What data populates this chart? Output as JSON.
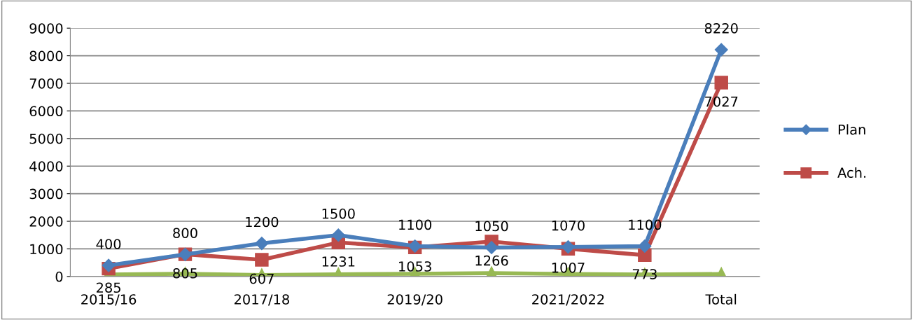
{
  "chart_data": {
    "type": "line",
    "categories": [
      "2015/16",
      null,
      "2017/18",
      null,
      "2019/20",
      null,
      "2021/2022",
      null,
      "Total"
    ],
    "series": [
      {
        "name": "Plan",
        "color": "#4a7ebb",
        "marker": "diamond",
        "values": [
          400,
          800,
          1200,
          1500,
          1100,
          1050,
          1070,
          1100,
          8220
        ],
        "value_labels": [
          "400",
          "800",
          "1200",
          "1500",
          "1100",
          "1050",
          "1070",
          "1100",
          "8220"
        ]
      },
      {
        "name": "Ach.",
        "color": "#be4b48",
        "marker": "square",
        "values": [
          285,
          805,
          607,
          1231,
          1053,
          1266,
          1007,
          773,
          7027
        ],
        "value_labels": [
          "285",
          "805",
          "607",
          "1231",
          "1053",
          "1266",
          "1007",
          "773",
          "7027"
        ]
      },
      {
        "color": "#98b954",
        "marker": "triangle",
        "values": [
          70,
          100,
          50,
          80,
          100,
          120,
          90,
          70,
          90
        ]
      }
    ],
    "ylim": [
      0,
      9000
    ],
    "yticks": [
      0,
      1000,
      2000,
      3000,
      4000,
      5000,
      6000,
      7000,
      8000,
      9000
    ],
    "grid": "y",
    "legend": "right"
  }
}
